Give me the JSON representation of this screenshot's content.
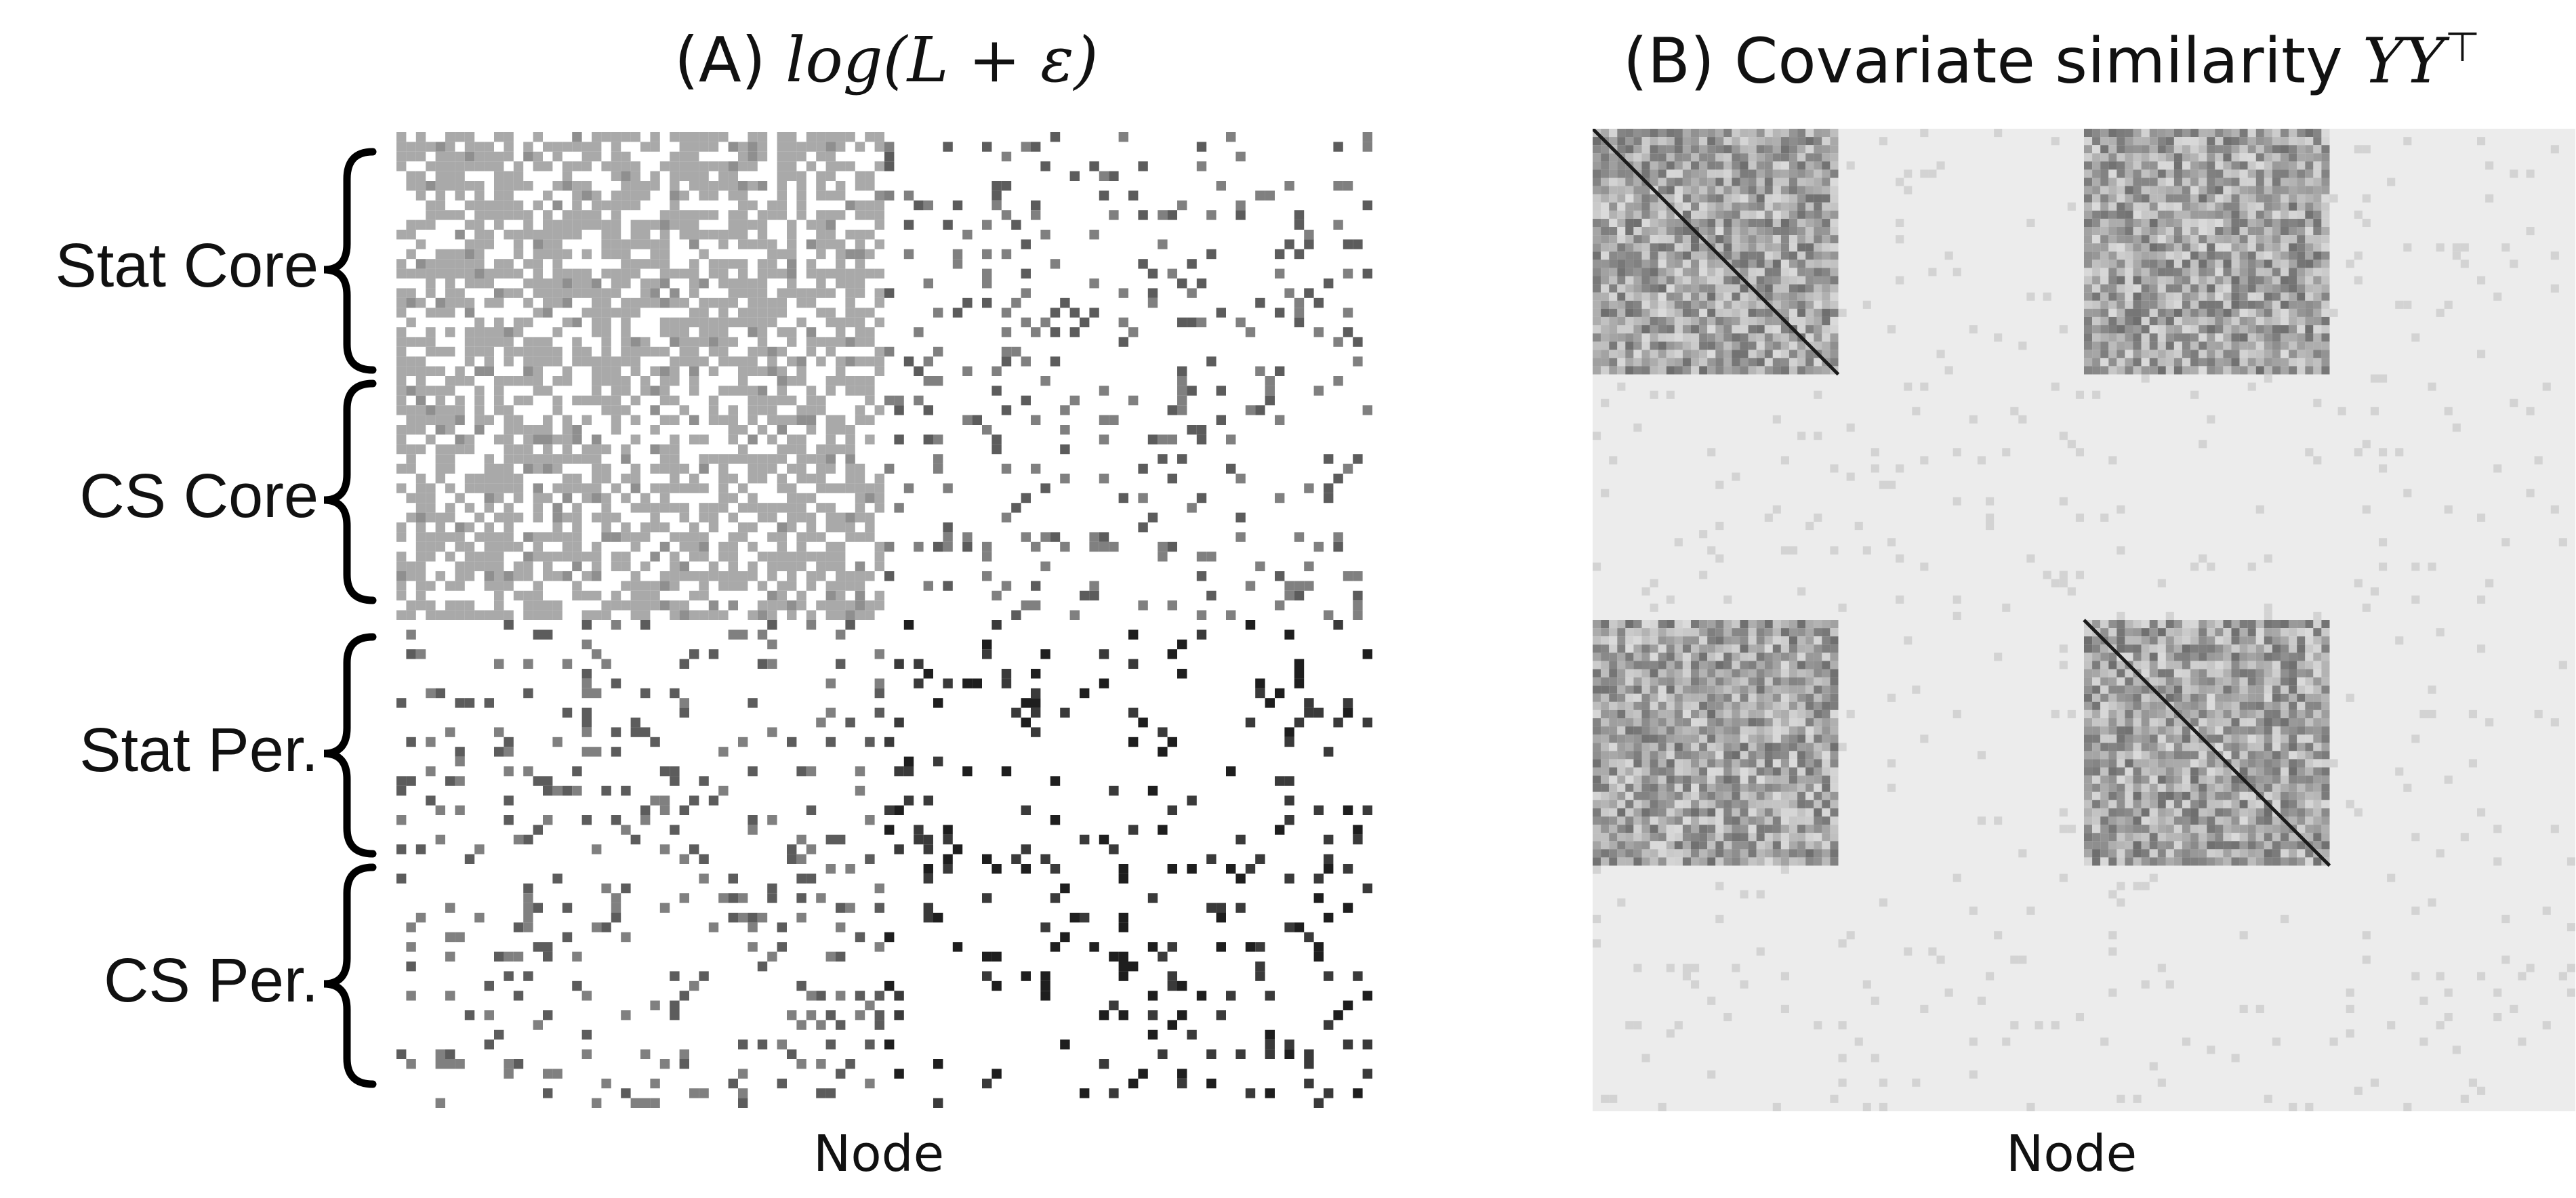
{
  "chart_data": [
    {
      "type": "heatmap",
      "panel": "A",
      "title_prefix": "(A) ",
      "title_math": "log(L + ε)",
      "xlabel": "Node",
      "ylabel": "",
      "row_groups": [
        "Stat Core",
        "CS Core",
        "Stat Per.",
        "CS Per."
      ],
      "block_structure": {
        "core_core": "dense, light gray",
        "core_periphery": "sparse",
        "periphery_periphery": "sparse, dark"
      },
      "colormap": "white-to-black (grayscale)"
    },
    {
      "type": "heatmap",
      "panel": "B",
      "title_prefix": "(B) Covariate similarity ",
      "title_math": "YY",
      "title_sup": "⊤",
      "xlabel": "Node",
      "ylabel": "",
      "block_structure": {
        "stat_core_with_stat_core": "high similarity, dark blocks",
        "stat_core_with_stat_periphery": "high similarity, dark blocks",
        "other": "low similarity, light gray background"
      },
      "colormap": "light gray-to-black (grayscale)"
    }
  ]
}
